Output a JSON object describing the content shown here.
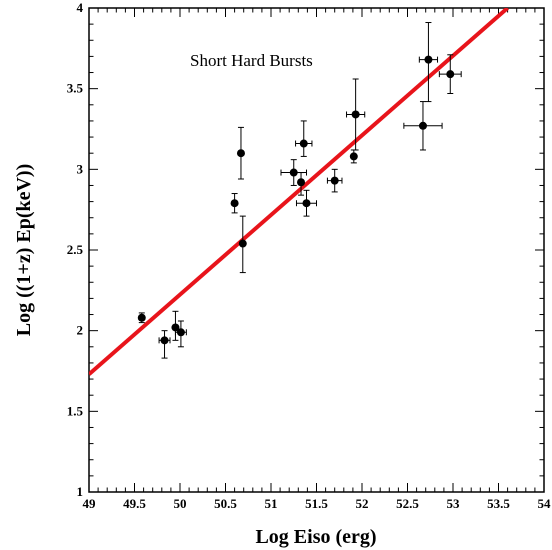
{
  "chart_data": {
    "type": "scatter",
    "title": "",
    "annotation": "Short Hard Bursts",
    "xlabel": "Log Eiso (erg)",
    "ylabel": "Log ((1+z) Ep(keV))",
    "xlim": [
      49,
      54
    ],
    "ylim": [
      1,
      4
    ],
    "xticks": [
      "49",
      "49.5",
      "50",
      "50.5",
      "51",
      "51.5",
      "52",
      "52.5",
      "53",
      "53.5",
      "54"
    ],
    "yticks": [
      "1",
      "1.5",
      "2",
      "2.5",
      "3",
      "3.5",
      "4"
    ],
    "grid": false,
    "colors": {
      "fit_line": "#e8141b",
      "points": "#000000"
    },
    "fit_line": {
      "x": [
        49,
        53.6
      ],
      "y": [
        1.73,
        4.0
      ]
    },
    "points": [
      {
        "x": 49.58,
        "y": 2.08,
        "xerr": [
          0.0,
          0.0
        ],
        "yerr": [
          0.03,
          0.03
        ]
      },
      {
        "x": 49.83,
        "y": 1.94,
        "xerr": [
          0.06,
          0.06
        ],
        "yerr": [
          0.11,
          0.06
        ]
      },
      {
        "x": 49.95,
        "y": 2.02,
        "xerr": [
          0.0,
          0.0
        ],
        "yerr": [
          0.08,
          0.1
        ]
      },
      {
        "x": 50.01,
        "y": 1.99,
        "xerr": [
          0.06,
          0.06
        ],
        "yerr": [
          0.09,
          0.07
        ]
      },
      {
        "x": 50.6,
        "y": 2.79,
        "xerr": [
          0.0,
          0.0
        ],
        "yerr": [
          0.06,
          0.06
        ]
      },
      {
        "x": 50.67,
        "y": 3.1,
        "xerr": [
          0.0,
          0.0
        ],
        "yerr": [
          0.16,
          0.16
        ]
      },
      {
        "x": 50.69,
        "y": 2.54,
        "xerr": [
          0.0,
          0.0
        ],
        "yerr": [
          0.18,
          0.17
        ]
      },
      {
        "x": 51.25,
        "y": 2.98,
        "xerr": [
          0.14,
          0.14
        ],
        "yerr": [
          0.08,
          0.08
        ]
      },
      {
        "x": 51.33,
        "y": 2.92,
        "xerr": [
          0.0,
          0.0
        ],
        "yerr": [
          0.08,
          0.06
        ]
      },
      {
        "x": 51.36,
        "y": 3.16,
        "xerr": [
          0.09,
          0.09
        ],
        "yerr": [
          0.08,
          0.14
        ]
      },
      {
        "x": 51.39,
        "y": 2.79,
        "xerr": [
          0.11,
          0.11
        ],
        "yerr": [
          0.08,
          0.08
        ]
      },
      {
        "x": 51.7,
        "y": 2.93,
        "xerr": [
          0.08,
          0.08
        ],
        "yerr": [
          0.07,
          0.07
        ]
      },
      {
        "x": 51.91,
        "y": 3.08,
        "xerr": [
          0.0,
          0.0
        ],
        "yerr": [
          0.04,
          0.04
        ]
      },
      {
        "x": 51.93,
        "y": 3.34,
        "xerr": [
          0.1,
          0.1
        ],
        "yerr": [
          0.22,
          0.22
        ]
      },
      {
        "x": 52.67,
        "y": 3.27,
        "xerr": [
          0.21,
          0.21
        ],
        "yerr": [
          0.15,
          0.15
        ]
      },
      {
        "x": 52.73,
        "y": 3.68,
        "xerr": [
          0.1,
          0.1
        ],
        "yerr": [
          0.26,
          0.23
        ]
      },
      {
        "x": 52.97,
        "y": 3.59,
        "xerr": [
          0.12,
          0.12
        ],
        "yerr": [
          0.12,
          0.12
        ]
      }
    ]
  }
}
